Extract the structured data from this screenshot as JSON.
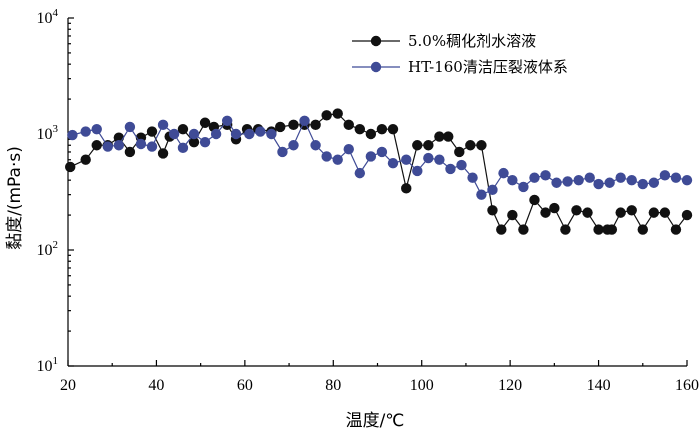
{
  "chart_data": {
    "type": "line",
    "xlabel": "温度/℃",
    "ylabel": "黏度/(mPa·s)",
    "xlim": [
      20,
      160
    ],
    "ylim": [
      10,
      10000
    ],
    "y_scale": "log",
    "x_ticks": [
      20,
      40,
      60,
      80,
      100,
      120,
      140,
      160
    ],
    "y_ticks": [
      {
        "value": 10,
        "base": "10",
        "exp": "1"
      },
      {
        "value": 100,
        "base": "10",
        "exp": "2"
      },
      {
        "value": 1000,
        "base": "10",
        "exp": "3"
      },
      {
        "value": 10000,
        "base": "10",
        "exp": "4"
      }
    ],
    "grid": false,
    "legend_position": "top-right",
    "series": [
      {
        "name": "5.0%稠化剂水溶液",
        "color": "#111111",
        "marker": "circle",
        "x": [
          20.5,
          24,
          26.5,
          29,
          31.5,
          34,
          36.5,
          39,
          41.5,
          43,
          46,
          48.5,
          51,
          53,
          56,
          58,
          60.5,
          63,
          66,
          68,
          71,
          73.5,
          76,
          78.5,
          81,
          83.5,
          86,
          88.5,
          91,
          93.5,
          96.5,
          99,
          101.5,
          104,
          106,
          108.5,
          111,
          113.5,
          116,
          118,
          120.5,
          123,
          125.5,
          128,
          130,
          132.5,
          135,
          137.5,
          140,
          142,
          143,
          145,
          147.5,
          150,
          152.5,
          155,
          157.5,
          160
        ],
        "y": [
          520,
          600,
          800,
          800,
          930,
          700,
          930,
          1050,
          680,
          950,
          1100,
          850,
          1250,
          1150,
          1200,
          900,
          1100,
          1100,
          1050,
          1150,
          1200,
          1200,
          1200,
          1450,
          1500,
          1200,
          1100,
          1000,
          1100,
          1100,
          340,
          800,
          800,
          950,
          950,
          700,
          800,
          800,
          220,
          150,
          200,
          150,
          270,
          210,
          230,
          150,
          220,
          210,
          150,
          150,
          150,
          210,
          220,
          150,
          210,
          210,
          150,
          200
        ]
      },
      {
        "name": "HT-160清洁压裂液体系",
        "color": "#3f4b96",
        "marker": "circle",
        "x": [
          21,
          24,
          26.5,
          29,
          31.5,
          34,
          36.5,
          39,
          41.5,
          44,
          46,
          48.5,
          51,
          53.5,
          56,
          58,
          61,
          63.5,
          66,
          68.5,
          71,
          73.5,
          76,
          78.5,
          81,
          83.5,
          86,
          88.5,
          91,
          93.5,
          96.5,
          99,
          101.5,
          104,
          106.5,
          109,
          111.5,
          113.5,
          116,
          118.5,
          120.5,
          123,
          125.5,
          128,
          130.5,
          133,
          135.5,
          138,
          140,
          142.5,
          145,
          147.5,
          150,
          152.5,
          155,
          157.5,
          160
        ],
        "y": [
          980,
          1050,
          1100,
          780,
          800,
          1150,
          820,
          780,
          1200,
          1000,
          760,
          1000,
          850,
          1000,
          1300,
          1000,
          1000,
          1050,
          1000,
          700,
          800,
          1300,
          800,
          640,
          600,
          740,
          460,
          640,
          700,
          560,
          600,
          480,
          620,
          600,
          500,
          540,
          420,
          300,
          330,
          460,
          400,
          350,
          420,
          440,
          380,
          390,
          400,
          420,
          370,
          380,
          420,
          400,
          370,
          380,
          440,
          420,
          400
        ]
      }
    ]
  }
}
